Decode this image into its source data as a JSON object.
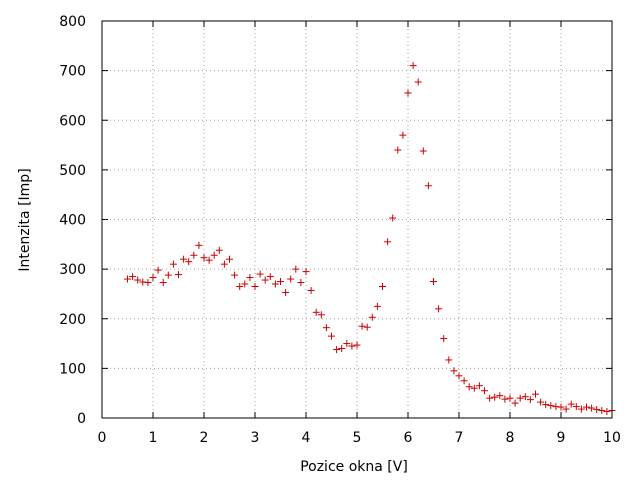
{
  "chart_data": {
    "type": "scatter",
    "xlabel": "Pozice okna [V]",
    "ylabel": "Intenzita [Imp]",
    "xlim": [
      0,
      10
    ],
    "ylim": [
      0,
      800
    ],
    "x_ticks": [
      "0",
      "1",
      "2",
      "3",
      "4",
      "5",
      "6",
      "7",
      "8",
      "9",
      "10"
    ],
    "y_ticks": [
      "0",
      "100",
      "200",
      "300",
      "400",
      "500",
      "600",
      "700",
      "800"
    ],
    "grid": true,
    "marker": "+",
    "color": "#cc0000",
    "series": [
      {
        "points": [
          [
            0.5,
            280
          ],
          [
            0.6,
            285
          ],
          [
            0.7,
            278
          ],
          [
            0.8,
            274
          ],
          [
            0.9,
            273
          ],
          [
            1.0,
            283
          ],
          [
            1.1,
            298
          ],
          [
            1.2,
            273
          ],
          [
            1.3,
            288
          ],
          [
            1.4,
            310
          ],
          [
            1.5,
            289
          ],
          [
            1.6,
            320
          ],
          [
            1.7,
            315
          ],
          [
            1.8,
            328
          ],
          [
            1.9,
            348
          ],
          [
            2.0,
            323
          ],
          [
            2.1,
            318
          ],
          [
            2.2,
            328
          ],
          [
            2.3,
            338
          ],
          [
            2.4,
            310
          ],
          [
            2.5,
            320
          ],
          [
            2.6,
            288
          ],
          [
            2.7,
            265
          ],
          [
            2.8,
            270
          ],
          [
            2.9,
            283
          ],
          [
            3.0,
            265
          ],
          [
            3.1,
            290
          ],
          [
            3.2,
            278
          ],
          [
            3.3,
            285
          ],
          [
            3.4,
            270
          ],
          [
            3.5,
            275
          ],
          [
            3.6,
            253
          ],
          [
            3.7,
            280
          ],
          [
            3.8,
            300
          ],
          [
            3.9,
            273
          ],
          [
            4.0,
            295
          ],
          [
            4.1,
            257
          ],
          [
            4.2,
            213
          ],
          [
            4.3,
            208
          ],
          [
            4.4,
            182
          ],
          [
            4.5,
            165
          ],
          [
            4.6,
            138
          ],
          [
            4.7,
            140
          ],
          [
            4.8,
            150
          ],
          [
            4.9,
            145
          ],
          [
            5.0,
            147
          ],
          [
            5.1,
            185
          ],
          [
            5.2,
            183
          ],
          [
            5.3,
            203
          ],
          [
            5.4,
            225
          ],
          [
            5.5,
            265
          ],
          [
            5.6,
            355
          ],
          [
            5.7,
            403
          ],
          [
            5.8,
            540
          ],
          [
            5.9,
            570
          ],
          [
            6.0,
            655
          ],
          [
            6.1,
            710
          ],
          [
            6.2,
            677
          ],
          [
            6.3,
            538
          ],
          [
            6.4,
            468
          ],
          [
            6.5,
            275
          ],
          [
            6.6,
            220
          ],
          [
            6.7,
            160
          ],
          [
            6.8,
            117
          ],
          [
            6.9,
            95
          ],
          [
            7.0,
            85
          ],
          [
            7.1,
            75
          ],
          [
            7.2,
            63
          ],
          [
            7.3,
            60
          ],
          [
            7.4,
            65
          ],
          [
            7.5,
            55
          ],
          [
            7.6,
            40
          ],
          [
            7.7,
            42
          ],
          [
            7.8,
            45
          ],
          [
            7.9,
            38
          ],
          [
            8.0,
            40
          ],
          [
            8.1,
            30
          ],
          [
            8.2,
            40
          ],
          [
            8.3,
            43
          ],
          [
            8.4,
            37
          ],
          [
            8.5,
            48
          ],
          [
            8.6,
            32
          ],
          [
            8.7,
            27
          ],
          [
            8.8,
            25
          ],
          [
            8.9,
            23
          ],
          [
            9.0,
            22
          ],
          [
            9.1,
            18
          ],
          [
            9.2,
            28
          ],
          [
            9.3,
            23
          ],
          [
            9.4,
            18
          ],
          [
            9.5,
            22
          ],
          [
            9.6,
            20
          ],
          [
            9.7,
            17
          ],
          [
            9.8,
            15
          ],
          [
            9.9,
            13
          ],
          [
            10.0,
            15
          ]
        ]
      }
    ]
  }
}
